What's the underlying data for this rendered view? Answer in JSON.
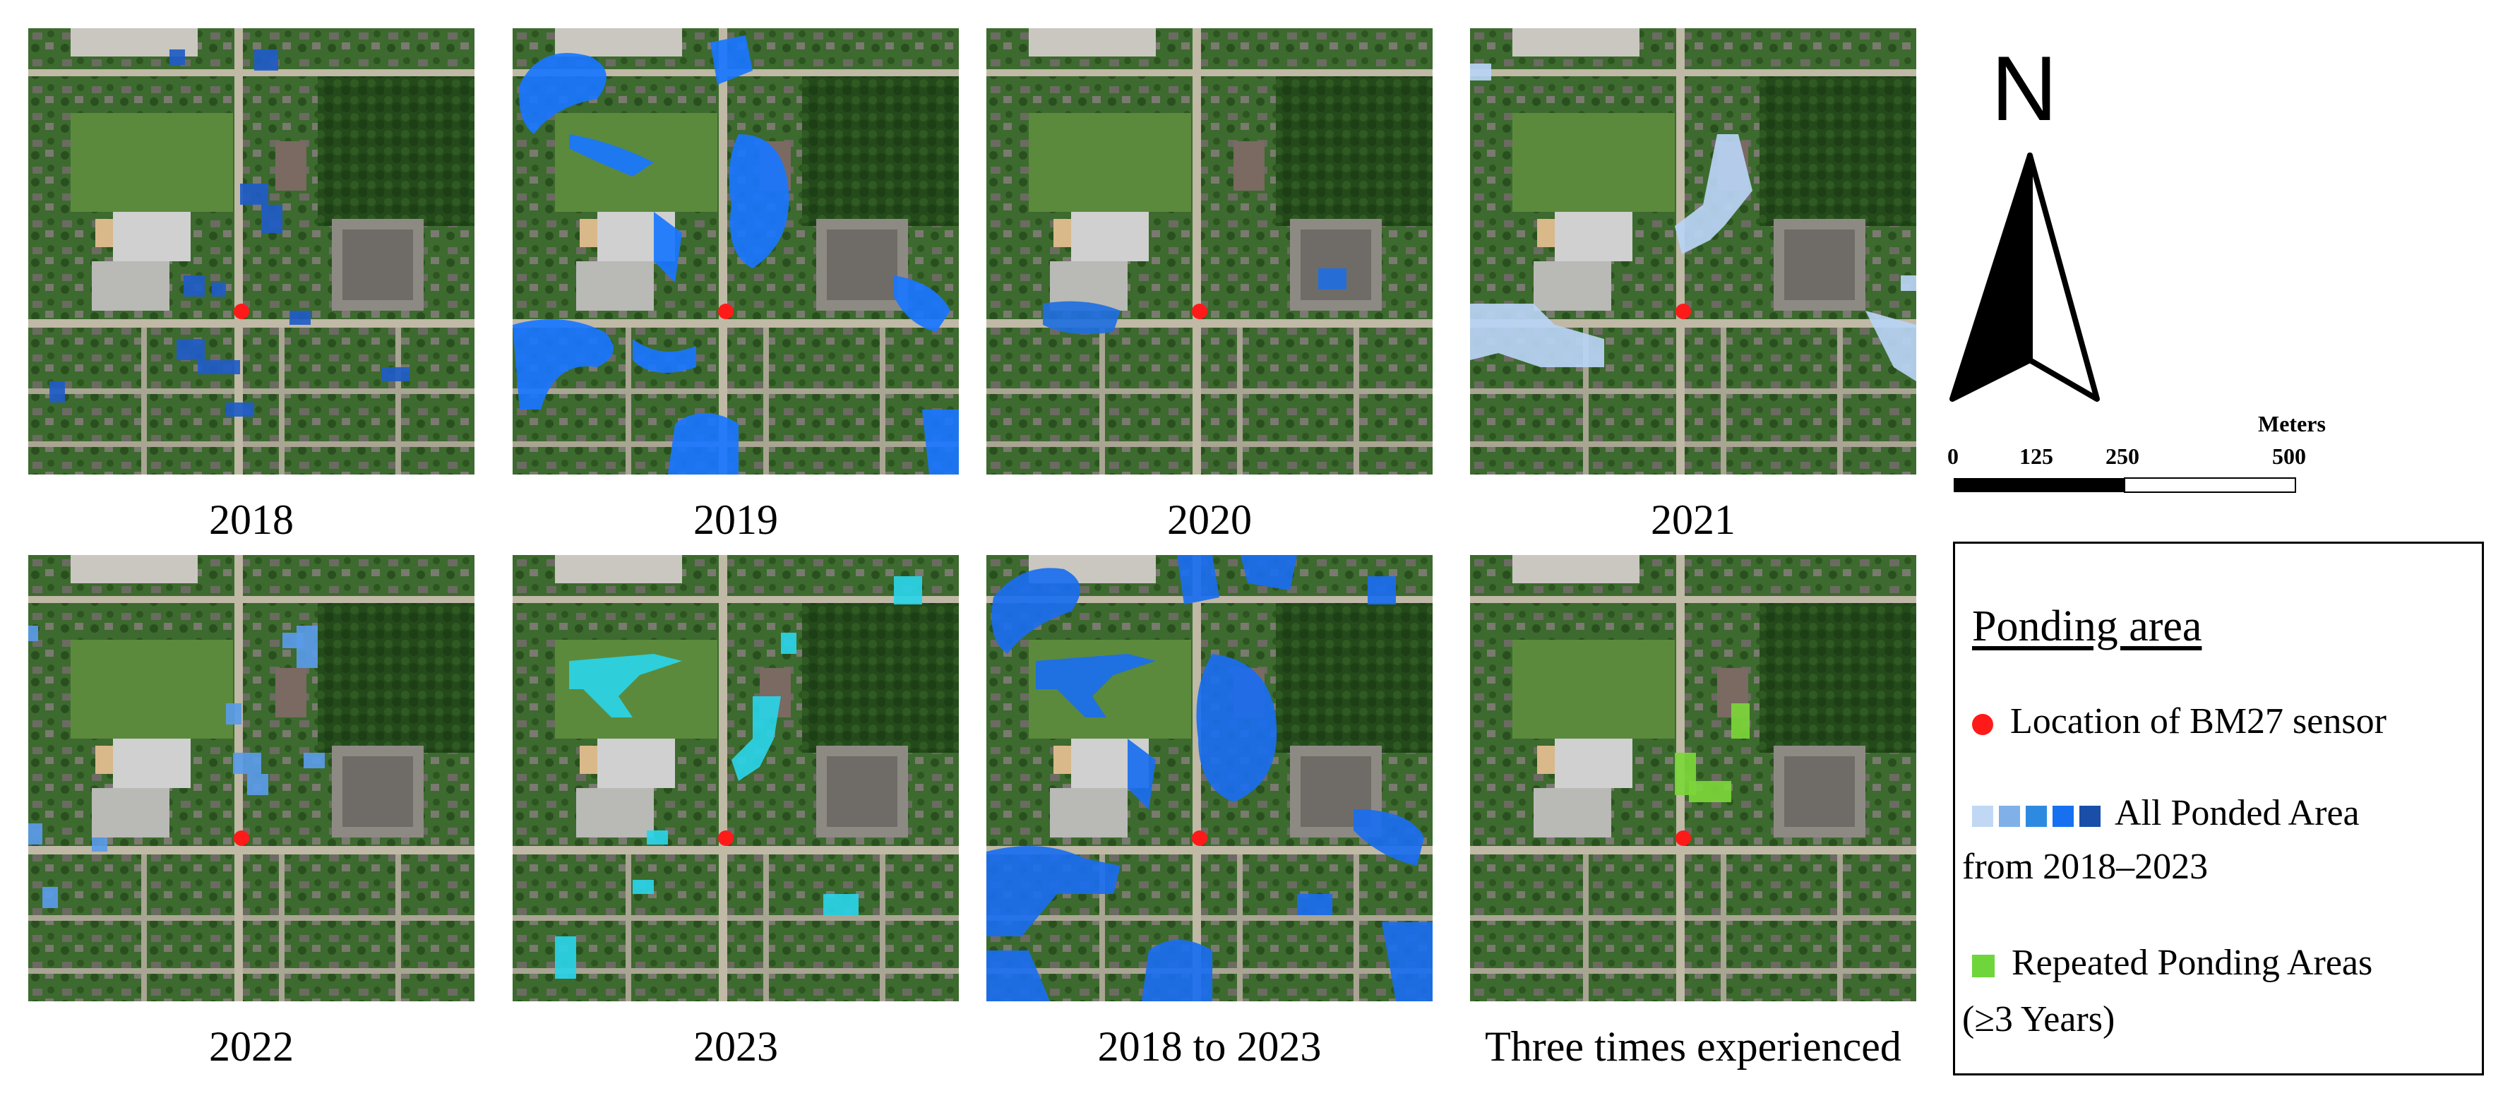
{
  "panels": [
    {
      "id": "2018",
      "caption": "2018",
      "ponding_color": "#1f5cc8"
    },
    {
      "id": "2019",
      "caption": "2019",
      "ponding_color": "#1976ff"
    },
    {
      "id": "2020",
      "caption": "2020",
      "ponding_color": "#1f6fe0"
    },
    {
      "id": "2021",
      "caption": "2021",
      "ponding_color": "#b8d4f5"
    },
    {
      "id": "2022",
      "caption": "2022",
      "ponding_color": "#5a9be8"
    },
    {
      "id": "2023",
      "caption": "2023",
      "ponding_color": "#2ad4e8"
    },
    {
      "id": "2018-2023",
      "caption": "2018 to 2023",
      "ponding_color": "#1a6ef0"
    },
    {
      "id": "three-times",
      "caption": "Three times experienced",
      "ponding_color": "#7cd63a"
    }
  ],
  "north_arrow": {
    "label": "N"
  },
  "scale": {
    "unit": "Meters",
    "ticks": [
      "0",
      "125",
      "250",
      "500"
    ]
  },
  "legend": {
    "title": "Ponding area",
    "sensor": {
      "label": "Location of BM27 sensor",
      "color": "#ff1a1a"
    },
    "all_ponded": {
      "label_line1": "All Ponded Area",
      "label_line2": "from 2018–2023",
      "colors": [
        "#c0d8f4",
        "#7fb0e8",
        "#2e8ae0",
        "#1670f0",
        "#1a4ea8"
      ]
    },
    "repeated": {
      "label_line1": "Repeated Ponding Areas",
      "label_line2": "(≥3 Years)",
      "color": "#6ed63a"
    }
  },
  "colors": {
    "background": "#ffffff",
    "sensor_dot": "#ff1a1a",
    "aerial_vegetation": "#3f6a2c",
    "aerial_road": "#bfb9a6"
  }
}
